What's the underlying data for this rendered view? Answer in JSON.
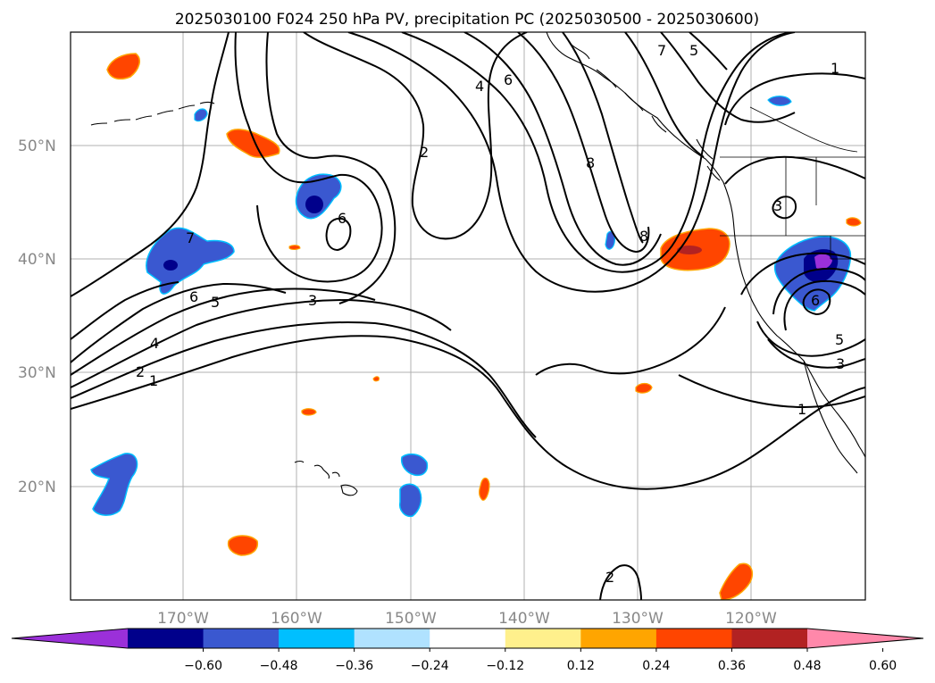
{
  "title": "2025030100 F024 250 hPa PV, precipitation PC (2025030500 - 2025030600)",
  "lat_labels": [
    "20°N",
    "30°N",
    "40°N",
    "50°N"
  ],
  "lon_labels": [
    "170°W",
    "160°W",
    "150°W",
    "140°W",
    "130°W",
    "120°W"
  ],
  "colorbar": {
    "ticks": [
      "−0.60",
      "−0.48",
      "−0.36",
      "−0.24",
      "−0.12",
      "0.12",
      "0.24",
      "0.36",
      "0.48",
      "0.60"
    ],
    "colors": [
      "#9b30d9",
      "#00008b",
      "#3a58d0",
      "#00bfff",
      "#b0e2ff",
      "#ffffff",
      "#fff08c",
      "#ffa500",
      "#ff4500",
      "#b22222",
      "#ff88aa"
    ]
  },
  "contour_labels": [
    "1",
    "2",
    "3",
    "4",
    "5",
    "6",
    "7",
    "8"
  ],
  "contour_label_texts": [
    "1",
    "2",
    "4",
    "5",
    "6",
    "3",
    "1",
    "3",
    "5",
    "6",
    "4",
    "6",
    "7",
    "5",
    "1",
    "8",
    "8",
    "2",
    "2",
    "3"
  ]
}
